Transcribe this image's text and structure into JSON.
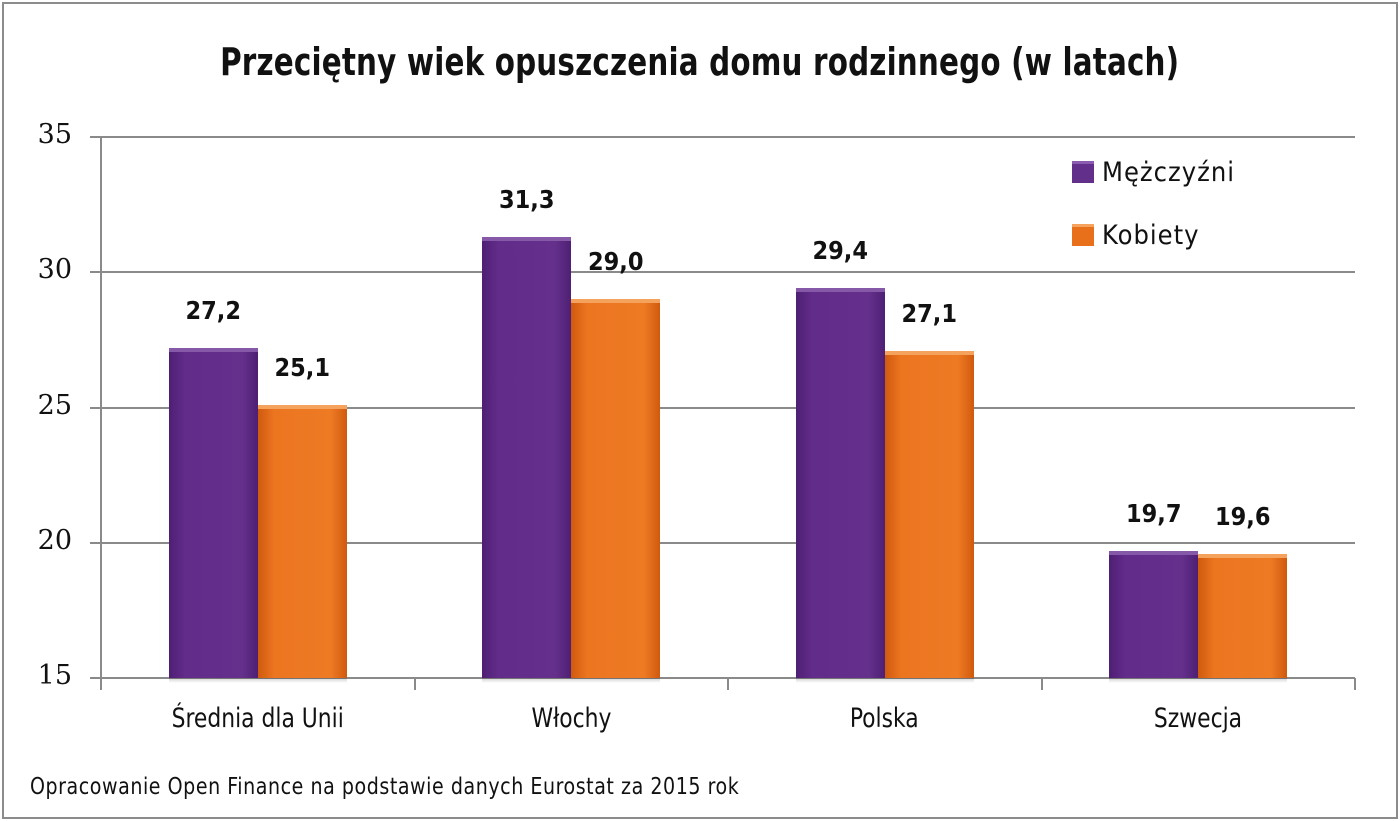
{
  "chart_data": {
    "type": "bar",
    "title": "Przeciętny wiek opuszczenia domu rodzinnego (w latach)",
    "xlabel": "",
    "ylabel": "",
    "ylim": [
      15,
      35
    ],
    "yticks": [
      "15",
      "20",
      "25",
      "30",
      "35"
    ],
    "grid": true,
    "legend_position": "top-right",
    "categories": [
      "Średnia dla Unii",
      "Włochy",
      "Polska",
      "Szwecja"
    ],
    "series": [
      {
        "name": "Mężczyźni",
        "color": "#62308a",
        "values": [
          27.2,
          31.3,
          29.4,
          19.7
        ],
        "labels": [
          "27,2",
          "31,3",
          "29,4",
          "19,7"
        ]
      },
      {
        "name": "Kobiety",
        "color": "#e8701a",
        "values": [
          25.1,
          29.0,
          27.1,
          19.6
        ],
        "labels": [
          "25,1",
          "29,0",
          "27,1",
          "19,6"
        ]
      }
    ],
    "source_note": "Opracowanie Open Finance na podstawie danych Eurostat za 2015 rok"
  },
  "colors": {
    "men": "#62308a",
    "women": "#e8701a",
    "grid": "#8a8a8a",
    "border": "#8c8c8c"
  }
}
